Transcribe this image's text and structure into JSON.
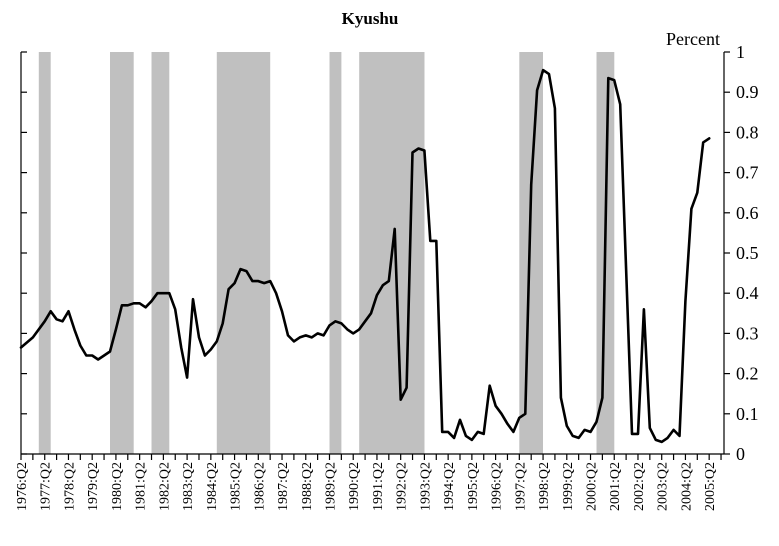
{
  "chart_data": {
    "type": "line",
    "title": "Kyushu",
    "y_unit_label": "Percent",
    "ylim": [
      0,
      1
    ],
    "y_ticks": [
      "0",
      "0.1",
      "0.2",
      "0.3",
      "0.4",
      "0.5",
      "0.6",
      "0.7",
      "0.8",
      "0.9",
      "1"
    ],
    "x_tick_labels": [
      "1976:Q2",
      "1977:Q2",
      "1978:Q2",
      "1979:Q2",
      "1980:Q2",
      "1981:Q2",
      "1982:Q2",
      "1983:Q2",
      "1984:Q2",
      "1985:Q2",
      "1986:Q2",
      "1987:Q2",
      "1988:Q2",
      "1989:Q2",
      "1990:Q2",
      "1991:Q2",
      "1992:Q2",
      "1993:Q2",
      "1994:Q2",
      "1995:Q2",
      "1996:Q2",
      "1997:Q2",
      "1998:Q2",
      "1999:Q2",
      "2000:Q2",
      "2001:Q2",
      "2002:Q2",
      "2003:Q2",
      "2004:Q2",
      "2005:Q2"
    ],
    "x_range": [
      "1976:Q2",
      "2005:Q4"
    ],
    "grid": false,
    "legend": "none",
    "shaded_periods": [
      [
        "1977:Q1",
        "1977:Q3"
      ],
      [
        "1980:Q1",
        "1981:Q1"
      ],
      [
        "1981:Q4",
        "1982:Q3"
      ],
      [
        "1984:Q3",
        "1986:Q4"
      ],
      [
        "1989:Q2",
        "1989:Q4"
      ],
      [
        "1990:Q3",
        "1993:Q2"
      ],
      [
        "1997:Q2",
        "1998:Q2"
      ],
      [
        "2000:Q3",
        "2001:Q2"
      ]
    ],
    "series": [
      {
        "color": "#000000",
        "points": [
          [
            "1976:Q2",
            0.265
          ],
          [
            "1976:Q4",
            0.29
          ],
          [
            "1977:Q2",
            0.33
          ],
          [
            "1977:Q3",
            0.355
          ],
          [
            "1977:Q4",
            0.335
          ],
          [
            "1978:Q1",
            0.33
          ],
          [
            "1978:Q2",
            0.355
          ],
          [
            "1978:Q3",
            0.31
          ],
          [
            "1978:Q4",
            0.27
          ],
          [
            "1979:Q1",
            0.245
          ],
          [
            "1979:Q2",
            0.245
          ],
          [
            "1979:Q3",
            0.235
          ],
          [
            "1979:Q4",
            0.245
          ],
          [
            "1980:Q1",
            0.255
          ],
          [
            "1980:Q2",
            0.31
          ],
          [
            "1980:Q3",
            0.37
          ],
          [
            "1980:Q4",
            0.37
          ],
          [
            "1981:Q1",
            0.375
          ],
          [
            "1981:Q2",
            0.375
          ],
          [
            "1981:Q3",
            0.365
          ],
          [
            "1981:Q4",
            0.38
          ],
          [
            "1982:Q1",
            0.4
          ],
          [
            "1982:Q2",
            0.4
          ],
          [
            "1982:Q3",
            0.4
          ],
          [
            "1982:Q4",
            0.36
          ],
          [
            "1983:Q1",
            0.265
          ],
          [
            "1983:Q2",
            0.19
          ],
          [
            "1983:Q3",
            0.385
          ],
          [
            "1983:Q4",
            0.29
          ],
          [
            "1984:Q1",
            0.245
          ],
          [
            "1984:Q2",
            0.26
          ],
          [
            "1984:Q3",
            0.28
          ],
          [
            "1984:Q4",
            0.325
          ],
          [
            "1985:Q1",
            0.41
          ],
          [
            "1985:Q2",
            0.425
          ],
          [
            "1985:Q3",
            0.46
          ],
          [
            "1985:Q4",
            0.455
          ],
          [
            "1986:Q1",
            0.43
          ],
          [
            "1986:Q2",
            0.43
          ],
          [
            "1986:Q3",
            0.425
          ],
          [
            "1986:Q4",
            0.43
          ],
          [
            "1987:Q1",
            0.4
          ],
          [
            "1987:Q2",
            0.355
          ],
          [
            "1987:Q3",
            0.295
          ],
          [
            "1987:Q4",
            0.28
          ],
          [
            "1988:Q1",
            0.29
          ],
          [
            "1988:Q2",
            0.295
          ],
          [
            "1988:Q3",
            0.29
          ],
          [
            "1988:Q4",
            0.3
          ],
          [
            "1989:Q1",
            0.295
          ],
          [
            "1989:Q2",
            0.32
          ],
          [
            "1989:Q3",
            0.33
          ],
          [
            "1989:Q4",
            0.325
          ],
          [
            "1990:Q1",
            0.31
          ],
          [
            "1990:Q2",
            0.3
          ],
          [
            "1990:Q3",
            0.31
          ],
          [
            "1990:Q4",
            0.33
          ],
          [
            "1991:Q1",
            0.35
          ],
          [
            "1991:Q2",
            0.395
          ],
          [
            "1991:Q3",
            0.42
          ],
          [
            "1991:Q4",
            0.43
          ],
          [
            "1992:Q1",
            0.56
          ],
          [
            "1992:Q2",
            0.135
          ],
          [
            "1992:Q3",
            0.165
          ],
          [
            "1992:Q4",
            0.75
          ],
          [
            "1993:Q1",
            0.76
          ],
          [
            "1993:Q2",
            0.755
          ],
          [
            "1993:Q3",
            0.53
          ],
          [
            "1993:Q4",
            0.53
          ],
          [
            "1994:Q1",
            0.055
          ],
          [
            "1994:Q2",
            0.055
          ],
          [
            "1994:Q3",
            0.04
          ],
          [
            "1994:Q4",
            0.085
          ],
          [
            "1995:Q1",
            0.045
          ],
          [
            "1995:Q2",
            0.035
          ],
          [
            "1995:Q3",
            0.055
          ],
          [
            "1995:Q4",
            0.05
          ],
          [
            "1996:Q1",
            0.17
          ],
          [
            "1996:Q2",
            0.12
          ],
          [
            "1996:Q3",
            0.1
          ],
          [
            "1996:Q4",
            0.075
          ],
          [
            "1997:Q1",
            0.055
          ],
          [
            "1997:Q2",
            0.09
          ],
          [
            "1997:Q3",
            0.1
          ],
          [
            "1997:Q4",
            0.67
          ],
          [
            "1998:Q1",
            0.905
          ],
          [
            "1998:Q2",
            0.955
          ],
          [
            "1998:Q3",
            0.945
          ],
          [
            "1998:Q4",
            0.86
          ],
          [
            "1999:Q1",
            0.14
          ],
          [
            "1999:Q2",
            0.07
          ],
          [
            "1999:Q3",
            0.045
          ],
          [
            "1999:Q4",
            0.04
          ],
          [
            "2000:Q1",
            0.06
          ],
          [
            "2000:Q2",
            0.055
          ],
          [
            "2000:Q3",
            0.08
          ],
          [
            "2000:Q4",
            0.14
          ],
          [
            "2001:Q1",
            0.935
          ],
          [
            "2001:Q2",
            0.93
          ],
          [
            "2001:Q3",
            0.87
          ],
          [
            "2001:Q4",
            0.46
          ],
          [
            "2002:Q1",
            0.05
          ],
          [
            "2002:Q2",
            0.05
          ],
          [
            "2002:Q3",
            0.36
          ],
          [
            "2002:Q4",
            0.065
          ],
          [
            "2003:Q1",
            0.035
          ],
          [
            "2003:Q2",
            0.03
          ],
          [
            "2003:Q3",
            0.04
          ],
          [
            "2003:Q4",
            0.06
          ],
          [
            "2004:Q1",
            0.045
          ],
          [
            "2004:Q2",
            0.38
          ],
          [
            "2004:Q3",
            0.61
          ],
          [
            "2004:Q4",
            0.65
          ],
          [
            "2005:Q1",
            0.775
          ],
          [
            "2005:Q2",
            0.785
          ]
        ]
      }
    ]
  }
}
